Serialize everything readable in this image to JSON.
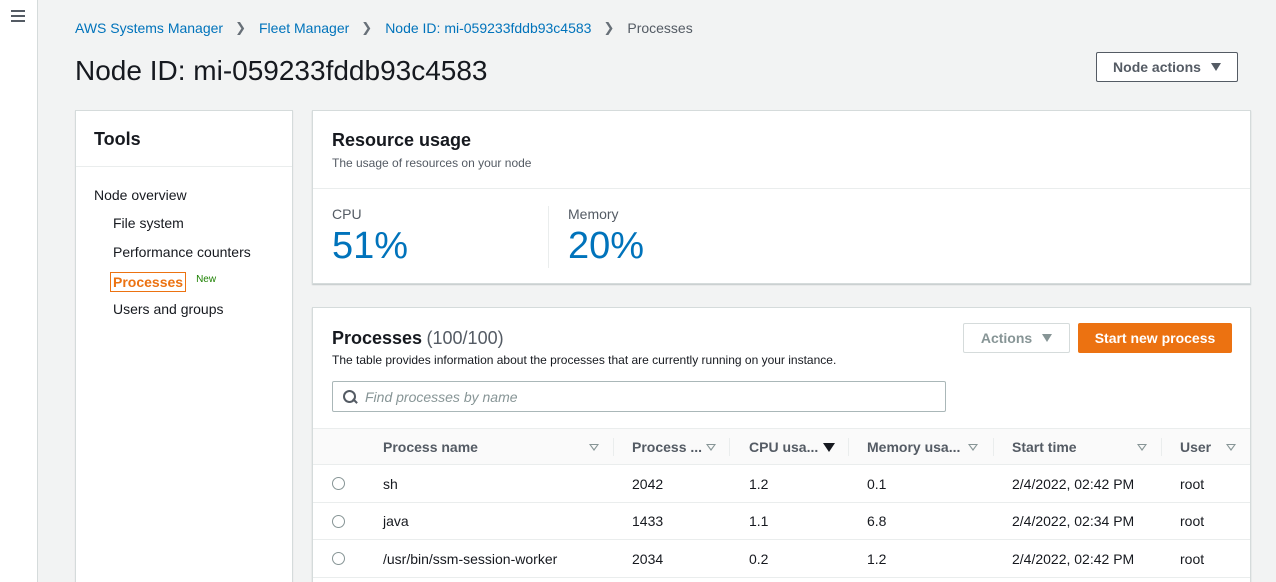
{
  "breadcrumb": [
    {
      "label": "AWS Systems Manager"
    },
    {
      "label": "Fleet Manager"
    },
    {
      "label": "Node ID: mi-059233fddb93c4583"
    },
    {
      "label": "Processes"
    }
  ],
  "page_title": "Node ID: mi-059233fddb93c4583",
  "header": {
    "node_actions_label": "Node actions"
  },
  "tools": {
    "title": "Tools",
    "items": [
      {
        "label": "Node overview"
      },
      {
        "label": "File system"
      },
      {
        "label": "Performance counters"
      },
      {
        "label": "Processes",
        "badge": "New"
      },
      {
        "label": "Users and groups"
      }
    ]
  },
  "resource_usage": {
    "title": "Resource usage",
    "description": "The usage of resources on your node",
    "cpu": {
      "label": "CPU",
      "value": "51%"
    },
    "memory": {
      "label": "Memory",
      "value": "20%"
    }
  },
  "processes": {
    "title": "Processes",
    "count": "(100/100)",
    "description": "The table provides information about the processes that are currently running on your instance.",
    "actions_label": "Actions",
    "start_label": "Start new process",
    "search_placeholder": "Find processes by name",
    "columns": [
      "Process name",
      "Process ...",
      "CPU usa...",
      "Memory usa...",
      "Start time",
      "User"
    ],
    "rows": [
      {
        "name": "sh",
        "pid": "2042",
        "cpu": "1.2",
        "memory": "0.1",
        "start": "2/4/2022, 02:42 PM",
        "user": "root"
      },
      {
        "name": "java",
        "pid": "1433",
        "cpu": "1.1",
        "memory": "6.8",
        "start": "2/4/2022, 02:34 PM",
        "user": "root"
      },
      {
        "name": "/usr/bin/ssm-session-worker",
        "pid": "2034",
        "cpu": "0.2",
        "memory": "1.2",
        "start": "2/4/2022, 02:42 PM",
        "user": "root"
      }
    ]
  },
  "colors": {
    "link": "#0073bb",
    "accent_orange": "#ec7211",
    "new_badge": "#1d8102"
  },
  "icons": [
    "hamburger-menu-icon",
    "chevron-right-icon",
    "caret-down-icon",
    "search-icon",
    "sort-icon",
    "radio-button"
  ]
}
